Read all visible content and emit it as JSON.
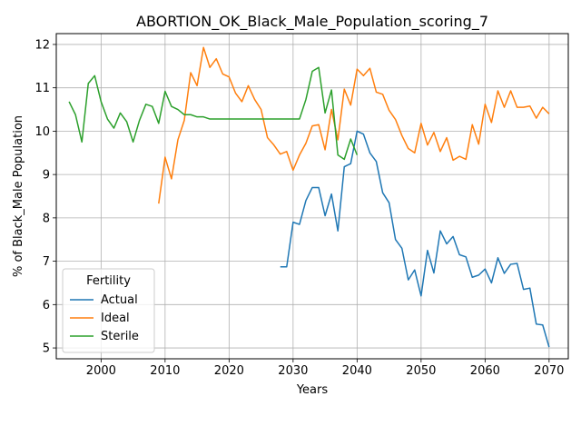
{
  "chart_data": {
    "type": "line",
    "title": "ABORTION_OK_Black_Male_Population_scoring_7",
    "xlabel": "Years",
    "ylabel": "% of Black_Male Population",
    "xlim": [
      1993,
      2073
    ],
    "ylim": [
      4.75,
      12.25
    ],
    "xticks": [
      2000,
      2010,
      2020,
      2030,
      2040,
      2050,
      2060,
      2070
    ],
    "yticks": [
      5,
      6,
      7,
      8,
      9,
      10,
      11,
      12
    ],
    "grid": true,
    "legend": {
      "title": "Fertility",
      "placement": "lower-left"
    },
    "series": [
      {
        "name": "Actual",
        "color": "#1f77b4",
        "x": [
          2028,
          2029,
          2030,
          2031,
          2032,
          2033,
          2034,
          2035,
          2036,
          2037,
          2038,
          2039,
          2040,
          2041,
          2042,
          2043,
          2044,
          2045,
          2046,
          2047,
          2048,
          2049,
          2050,
          2051,
          2052,
          2053,
          2054,
          2055,
          2056,
          2057,
          2058,
          2059,
          2060,
          2061,
          2062,
          2063,
          2064,
          2065,
          2066,
          2067,
          2068,
          2069,
          2070
        ],
        "y": [
          6.87,
          6.87,
          7.9,
          7.85,
          8.4,
          8.7,
          8.7,
          8.05,
          8.55,
          7.7,
          9.18,
          9.25,
          10.0,
          9.93,
          9.5,
          9.3,
          8.58,
          8.35,
          7.5,
          7.3,
          6.57,
          6.8,
          6.2,
          7.25,
          6.73,
          7.7,
          7.4,
          7.57,
          7.15,
          7.1,
          6.63,
          6.68,
          6.82,
          6.5,
          7.08,
          6.72,
          6.93,
          6.95,
          6.35,
          6.38,
          5.55,
          5.53,
          5.02
        ]
      },
      {
        "name": "Ideal",
        "color": "#ff7f0e",
        "x": [
          2009,
          2010,
          2011,
          2012,
          2013,
          2014,
          2015,
          2016,
          2017,
          2018,
          2019,
          2020,
          2021,
          2022,
          2023,
          2024,
          2025,
          2026,
          2027,
          2028,
          2029,
          2030,
          2031,
          2032,
          2033,
          2034,
          2035,
          2036,
          2037,
          2038,
          2039,
          2040,
          2041,
          2042,
          2043,
          2044,
          2045,
          2046,
          2047,
          2048,
          2049,
          2050,
          2051,
          2052,
          2053,
          2054,
          2055,
          2056,
          2057,
          2058,
          2059,
          2060,
          2061,
          2062,
          2063,
          2064,
          2065,
          2066,
          2067,
          2068,
          2069,
          2070
        ],
        "y": [
          8.33,
          9.4,
          8.9,
          9.8,
          10.25,
          11.35,
          11.05,
          11.93,
          11.47,
          11.67,
          11.32,
          11.25,
          10.88,
          10.68,
          11.05,
          10.73,
          10.5,
          9.85,
          9.68,
          9.47,
          9.53,
          9.1,
          9.45,
          9.72,
          10.12,
          10.15,
          9.57,
          10.5,
          9.8,
          10.97,
          10.6,
          11.43,
          11.28,
          11.45,
          10.9,
          10.85,
          10.48,
          10.27,
          9.9,
          9.6,
          9.5,
          10.18,
          9.68,
          9.97,
          9.53,
          9.85,
          9.33,
          9.42,
          9.35,
          10.15,
          9.7,
          10.62,
          10.2,
          10.93,
          10.55,
          10.93,
          10.55,
          10.55,
          10.58,
          10.3,
          10.55,
          10.4
        ]
      },
      {
        "name": "Sterile",
        "color": "#2ca02c",
        "x": [
          1995,
          1996,
          1997,
          1998,
          1999,
          2000,
          2001,
          2002,
          2003,
          2004,
          2005,
          2006,
          2007,
          2008,
          2009,
          2010,
          2011,
          2012,
          2013,
          2014,
          2015,
          2016,
          2017,
          2018,
          2019,
          2020,
          2021,
          2022,
          2023,
          2024,
          2025,
          2026,
          2027,
          2028,
          2029,
          2030,
          2031,
          2032,
          2033,
          2034,
          2035,
          2036,
          2037,
          2038,
          2039,
          2040
        ],
        "y": [
          10.68,
          10.38,
          9.75,
          11.1,
          11.28,
          10.68,
          10.28,
          10.07,
          10.42,
          10.22,
          9.75,
          10.25,
          10.62,
          10.57,
          10.18,
          10.92,
          10.57,
          10.5,
          10.38,
          10.38,
          10.33,
          10.33,
          10.28,
          10.28,
          10.28,
          10.28,
          10.28,
          10.28,
          10.28,
          10.28,
          10.28,
          10.28,
          10.28,
          10.28,
          10.28,
          10.28,
          10.28,
          10.73,
          11.38,
          11.47,
          10.42,
          10.95,
          9.45,
          9.35,
          9.82,
          9.45
        ]
      }
    ]
  }
}
